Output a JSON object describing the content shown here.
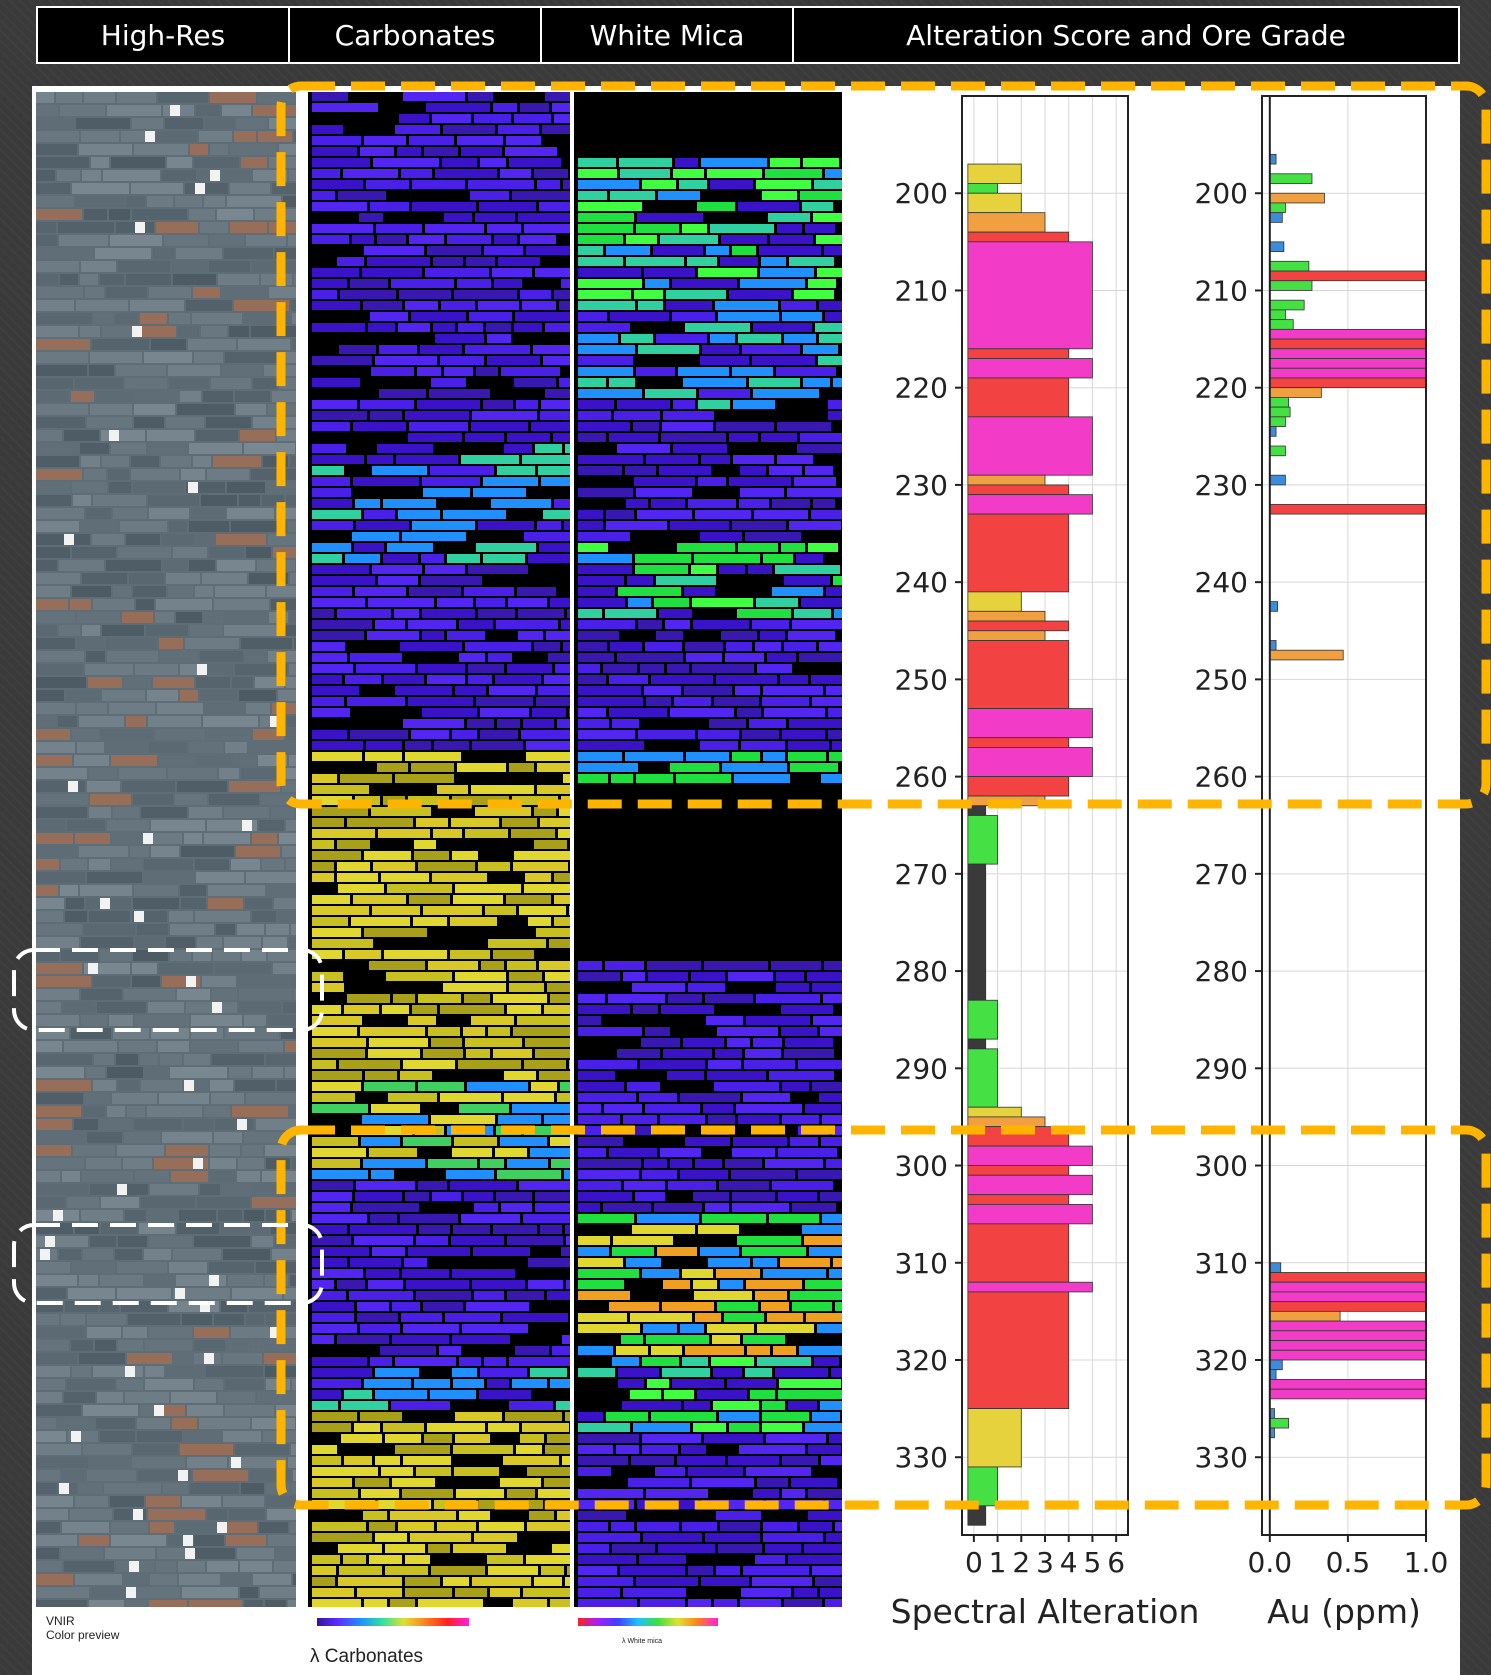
{
  "headers": [
    "High-Res",
    "Carbonates",
    "White Mica",
    "Alteration Score and Ore Grade"
  ],
  "captions": {
    "hires_legend": [
      "VNIR",
      "Color preview"
    ],
    "carbonates_legend": "λ Carbonates",
    "mica_legend": "λ White mica"
  },
  "colors": {
    "score_0": "#3a3a3a",
    "score_1": "#44e044",
    "score_2": "#e6d23c",
    "score_3": "#f0a040",
    "score_4": "#f24242",
    "score_5": "#f23cc8",
    "au_low": "#3c8cdc",
    "highlight_box": "#ffb400",
    "callout_box": "#ffffff"
  },
  "chart_data": [
    {
      "type": "bar",
      "orientation": "horizontal",
      "xlabel": "Spectral Alteration",
      "ylabel": "",
      "xticks": [
        0,
        1,
        2,
        3,
        4,
        5,
        6
      ],
      "xlim": [
        -0.5,
        6.5
      ],
      "ylim": [
        338,
        190
      ],
      "yticks": [
        200,
        210,
        220,
        230,
        240,
        250,
        260,
        270,
        280,
        290,
        300,
        310,
        320,
        330
      ],
      "grid": true,
      "intervals": [
        [
          197,
          199,
          2
        ],
        [
          199,
          200,
          1
        ],
        [
          200,
          202,
          2
        ],
        [
          202,
          204,
          3
        ],
        [
          204,
          205,
          4
        ],
        [
          205,
          216,
          5
        ],
        [
          216,
          217,
          4
        ],
        [
          217,
          219,
          5
        ],
        [
          219,
          223,
          4
        ],
        [
          223,
          229,
          5
        ],
        [
          229,
          230,
          3
        ],
        [
          230,
          231,
          4
        ],
        [
          231,
          233,
          5
        ],
        [
          233,
          241,
          4
        ],
        [
          241,
          243,
          2
        ],
        [
          243,
          244,
          3
        ],
        [
          244,
          245,
          4
        ],
        [
          245,
          246,
          3
        ],
        [
          246,
          253,
          4
        ],
        [
          253,
          256,
          5
        ],
        [
          256,
          257,
          4
        ],
        [
          257,
          260,
          5
        ],
        [
          260,
          262,
          4
        ],
        [
          262,
          263,
          3
        ],
        [
          263,
          264,
          0
        ],
        [
          264,
          269,
          1
        ],
        [
          269,
          283,
          0
        ],
        [
          283,
          287,
          1
        ],
        [
          287,
          288,
          0
        ],
        [
          288,
          294,
          1
        ],
        [
          294,
          295,
          2
        ],
        [
          295,
          296,
          3
        ],
        [
          296,
          298,
          4
        ],
        [
          298,
          300,
          5
        ],
        [
          300,
          301,
          4
        ],
        [
          301,
          303,
          5
        ],
        [
          303,
          304,
          4
        ],
        [
          304,
          306,
          5
        ],
        [
          306,
          312,
          4
        ],
        [
          312,
          313,
          5
        ],
        [
          313,
          325,
          4
        ],
        [
          325,
          331,
          2
        ],
        [
          331,
          335,
          1
        ],
        [
          335,
          337,
          0
        ]
      ]
    },
    {
      "type": "bar",
      "orientation": "horizontal",
      "xlabel": "Au (ppm)",
      "ylabel": "",
      "xticks": [
        "0.0",
        "0.5",
        "1.0"
      ],
      "xlim": [
        -0.05,
        1.0
      ],
      "ylim": [
        338,
        190
      ],
      "yticks": [
        200,
        210,
        220,
        230,
        240,
        250,
        260,
        270,
        280,
        290,
        300,
        310,
        320,
        330
      ],
      "grid": true,
      "intervals": [
        [
          196,
          197,
          0.04,
          0
        ],
        [
          198,
          199,
          0.27,
          1
        ],
        [
          200,
          201,
          0.35,
          3
        ],
        [
          201,
          202,
          0.1,
          1
        ],
        [
          202,
          203,
          0.08,
          0
        ],
        [
          205,
          206,
          0.09,
          0
        ],
        [
          207,
          208,
          0.25,
          1
        ],
        [
          208,
          209,
          1.0,
          4
        ],
        [
          209,
          210,
          0.27,
          1
        ],
        [
          211,
          212,
          0.22,
          1
        ],
        [
          212,
          213,
          0.1,
          1
        ],
        [
          213,
          214,
          0.15,
          1
        ],
        [
          214,
          215,
          1.0,
          5
        ],
        [
          215,
          216,
          1.0,
          4
        ],
        [
          216,
          217,
          1.0,
          5
        ],
        [
          217,
          218,
          1.0,
          5
        ],
        [
          218,
          219,
          1.0,
          5
        ],
        [
          219,
          220,
          1.0,
          4
        ],
        [
          220,
          221,
          0.33,
          3
        ],
        [
          221,
          222,
          0.12,
          1
        ],
        [
          222,
          223,
          0.13,
          1
        ],
        [
          223,
          224,
          0.1,
          1
        ],
        [
          224,
          225,
          0.04,
          0
        ],
        [
          226,
          227,
          0.1,
          1
        ],
        [
          229,
          230,
          0.1,
          0
        ],
        [
          232,
          233,
          1.0,
          4
        ],
        [
          242,
          243,
          0.05,
          0
        ],
        [
          246,
          247,
          0.04,
          0
        ],
        [
          247,
          248,
          0.47,
          3
        ],
        [
          310,
          311,
          0.07,
          0
        ],
        [
          311,
          312,
          1.0,
          4
        ],
        [
          312,
          313,
          1.0,
          5
        ],
        [
          313,
          314,
          1.0,
          5
        ],
        [
          314,
          315,
          1.0,
          4
        ],
        [
          315,
          316,
          0.45,
          3
        ],
        [
          316,
          317,
          1.0,
          5
        ],
        [
          317,
          318,
          1.0,
          5
        ],
        [
          318,
          319,
          1.0,
          5
        ],
        [
          319,
          320,
          1.0,
          5
        ],
        [
          320,
          321,
          0.08,
          0
        ],
        [
          321,
          322,
          0.04,
          0
        ],
        [
          322,
          323,
          1.0,
          5
        ],
        [
          323,
          324,
          1.0,
          5
        ],
        [
          325,
          326,
          0.03,
          0
        ],
        [
          326,
          327,
          0.12,
          1
        ],
        [
          327,
          328,
          0.03,
          0
        ]
      ]
    }
  ]
}
